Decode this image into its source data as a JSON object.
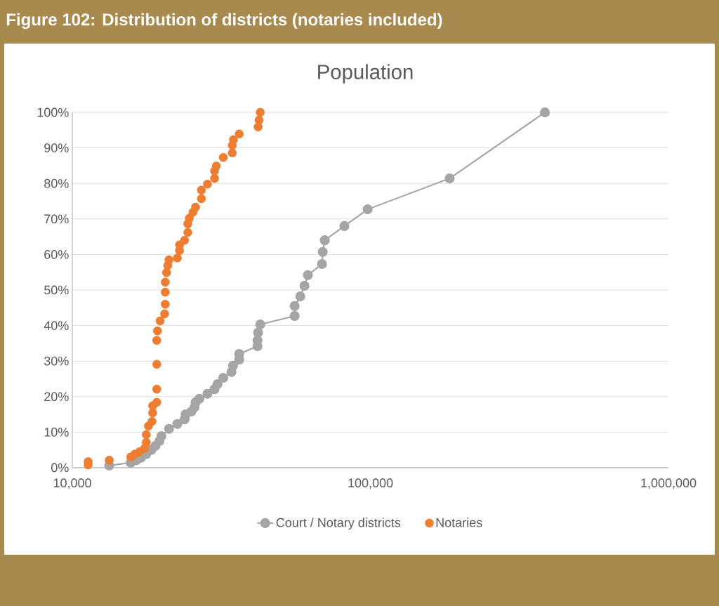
{
  "chart_data": {
    "type": "line",
    "title": "Figure 102: Distribution of districts (notaries included)",
    "subtitle": "Population",
    "xlim": [
      10000,
      1000000
    ],
    "xticks": [
      {
        "value": 10000,
        "label": "10,000"
      },
      {
        "value": 100000,
        "label": "100,000"
      },
      {
        "value": 1000000,
        "label": "1,000,000"
      }
    ],
    "ylim": [
      0,
      100
    ],
    "yticks": [
      {
        "value": 0,
        "label": "0%"
      },
      {
        "value": 10,
        "label": "10%"
      },
      {
        "value": 20,
        "label": "20%"
      },
      {
        "value": 30,
        "label": "30%"
      },
      {
        "value": 40,
        "label": "40%"
      },
      {
        "value": 50,
        "label": "50%"
      },
      {
        "value": 60,
        "label": "60%"
      },
      {
        "value": 70,
        "label": "70%"
      },
      {
        "value": 80,
        "label": "80%"
      },
      {
        "value": 90,
        "label": "90%"
      },
      {
        "value": 100,
        "label": "100%"
      }
    ],
    "log": "x",
    "grid": "y",
    "legend": "bottom",
    "marker": "circle",
    "series": [
      {
        "name": "Court / Notary districts",
        "color": "#a5a5a5",
        "x": [
          13300,
          15700,
          16400,
          17000,
          17700,
          18400,
          19000,
          19600,
          19900,
          21100,
          22500,
          23800,
          24000,
          25100,
          25700,
          25900,
          26700,
          28400,
          30000,
          30700,
          32100,
          34200,
          34600,
          36300,
          36300,
          41800,
          41800,
          42000,
          42700,
          55700,
          55700,
          58200,
          60100,
          61700,
          68800,
          69200,
          70300,
          81800,
          97900,
          184500,
          385000
        ],
        "values": [
          0.6,
          1.4,
          2.1,
          2.8,
          3.8,
          5.0,
          6.1,
          7.5,
          8.9,
          10.9,
          12.3,
          13.6,
          15.0,
          15.8,
          17.0,
          18.4,
          19.4,
          20.8,
          22.1,
          23.5,
          25.3,
          26.9,
          28.7,
          30.4,
          32.0,
          34.2,
          35.8,
          38.0,
          40.3,
          42.7,
          45.5,
          48.2,
          51.2,
          54.2,
          57.3,
          60.7,
          64.0,
          68.0,
          72.7,
          81.4,
          100
        ]
      },
      {
        "name": "Notaries",
        "type": "scatter",
        "color": "#ed7d31",
        "x": [
          11300,
          11300,
          13300,
          15700,
          16200,
          16800,
          17500,
          17700,
          17700,
          18000,
          18500,
          18600,
          18600,
          19200,
          19200,
          19200,
          19200,
          19300,
          19700,
          20400,
          20500,
          20500,
          20500,
          20700,
          20900,
          21100,
          22500,
          22900,
          22900,
          23800,
          24400,
          24400,
          24700,
          25400,
          25900,
          27100,
          27100,
          28400,
          30000,
          30000,
          30400,
          32100,
          34400,
          34400,
          34700,
          36300,
          42000,
          42300,
          42700
        ],
        "values": [
          0.8,
          1.7,
          2.1,
          3.0,
          3.8,
          4.5,
          5.5,
          7.1,
          9.3,
          11.7,
          13.0,
          15.4,
          17.4,
          18.4,
          22.1,
          29.1,
          35.8,
          38.5,
          41.3,
          43.3,
          46.0,
          49.4,
          52.2,
          54.9,
          56.9,
          58.5,
          59.0,
          61.1,
          62.7,
          64.0,
          66.2,
          68.6,
          70.2,
          71.9,
          73.3,
          75.7,
          78.1,
          79.8,
          81.4,
          83.5,
          84.9,
          87.3,
          88.6,
          90.7,
          92.3,
          93.9,
          95.9,
          97.8,
          100
        ]
      }
    ]
  }
}
